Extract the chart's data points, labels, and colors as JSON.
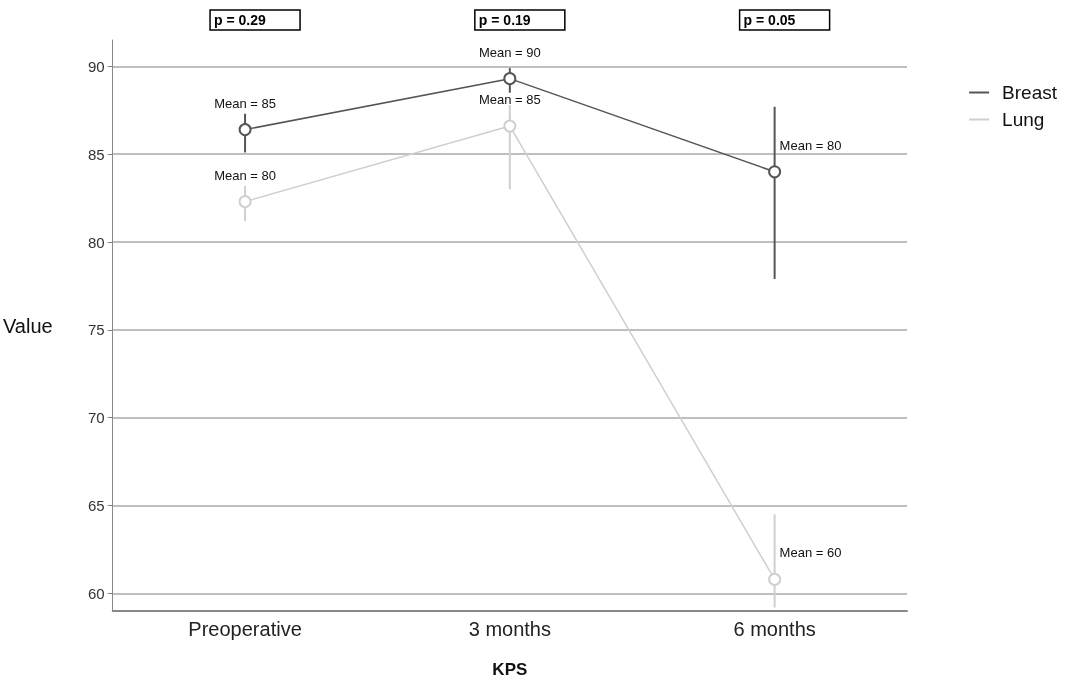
{
  "chart_data": {
    "type": "line",
    "xlabel": "KPS",
    "ylabel": "Value",
    "categories": [
      "Preoperative",
      "3 months",
      "6 months"
    ],
    "series": [
      {
        "name": "Breast",
        "color": "#555555",
        "values": [
          86.4,
          89.3,
          84.0
        ],
        "errors": [
          [
            85.1,
            87.3
          ],
          [
            88.5,
            89.9
          ],
          [
            77.9,
            87.7
          ]
        ]
      },
      {
        "name": "Lung",
        "color": "#cfcfcf",
        "values": [
          82.3,
          86.6,
          60.8
        ],
        "errors": [
          [
            81.2,
            83.2
          ],
          [
            83.0,
            87.8
          ],
          [
            59.2,
            64.5
          ]
        ]
      }
    ],
    "ylim": [
      59,
      91.5
    ],
    "yticks": [
      60,
      65,
      70,
      75,
      80,
      85,
      90
    ],
    "grid": "y",
    "legend": "top right",
    "marker": "circle",
    "line_style": "solid",
    "annotations": [
      "p = 0.29",
      "p = 0.19",
      "p = 0.05",
      {
        "text": "Mean = 85",
        "x": "Preoperative",
        "y": 86.4
      },
      {
        "text": "Mean = 90",
        "x": "3 months",
        "y": 89.3
      },
      {
        "text": "Mean = 80",
        "x": "6 months",
        "y": 84.0
      },
      {
        "text": "Mean = 80",
        "x": "Preoperative",
        "y": 82.3
      },
      {
        "text": "Mean = 85",
        "x": "3 months",
        "y": 86.6
      },
      {
        "text": "Mean = 60",
        "x": "6 months",
        "y": 60.8
      }
    ]
  }
}
